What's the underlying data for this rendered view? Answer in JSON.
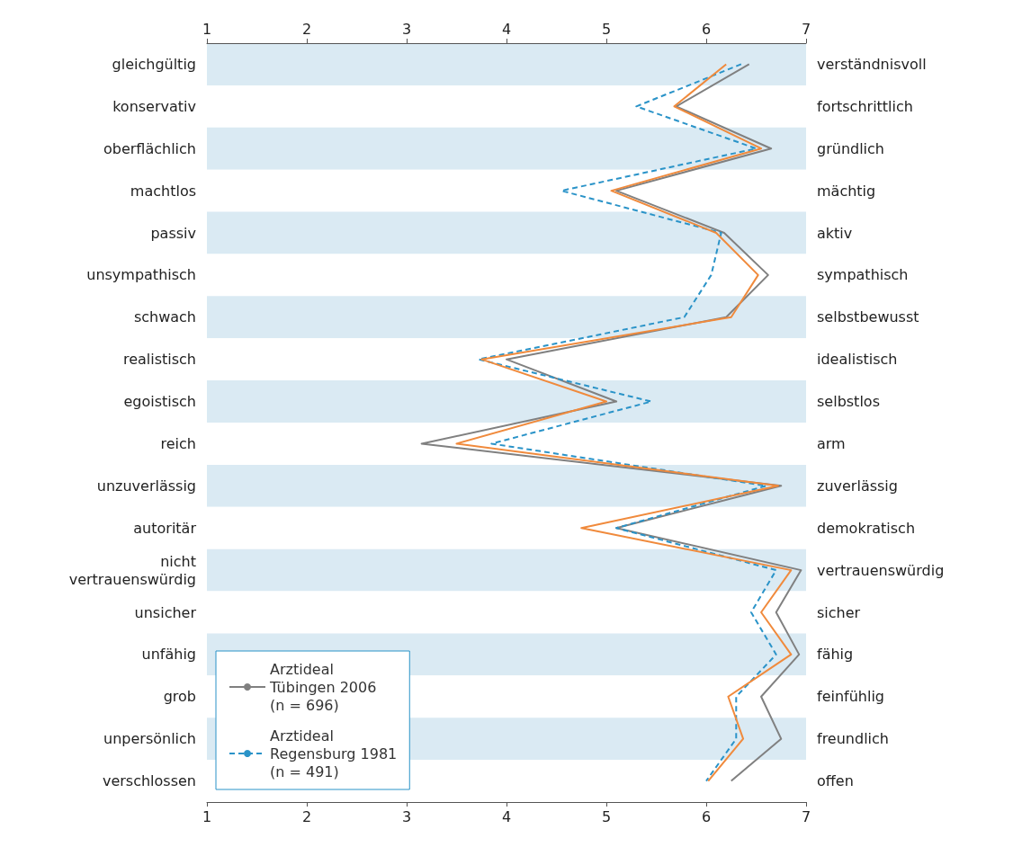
{
  "chart_data": {
    "type": "line",
    "orientation": "horizontal",
    "categories": [
      "gleichgültig",
      "konservativ",
      "oberflächlich",
      "machtlos",
      "passiv",
      "unsympathisch",
      "schwach",
      "realistisch",
      "egoistisch",
      "reich",
      "unzuverlässig",
      "autoritär",
      "nicht\nvertrauenswürdig",
      "unsicher",
      "unfähig",
      "grob",
      "unpersönlich",
      "verschlossen"
    ],
    "y2_categories": [
      "verständnisvoll",
      "fortschrittlich",
      "gründlich",
      "mächtig",
      "aktiv",
      "sympathisch",
      "selbstbewusst",
      "idealistisch",
      "selbstlos",
      "arm",
      "zuverlässig",
      "demokratisch",
      "vertrauenswürdig",
      "sicher",
      "fähig",
      "feinfühlig",
      "freundlich",
      "offen"
    ],
    "xlim": [
      1,
      7
    ],
    "xticks": [
      1,
      2,
      3,
      4,
      5,
      6,
      7
    ],
    "x2lim": [
      1,
      7
    ],
    "x2ticks": [
      1,
      2,
      3,
      4,
      5,
      6,
      7
    ],
    "series": [
      {
        "name": "Arztideal\nTübingen 2006\n(n = 696)",
        "color": "#808080",
        "line_style": "solid",
        "values": [
          6.43,
          5.7,
          6.65,
          5.1,
          6.18,
          6.62,
          6.2,
          4.0,
          5.1,
          3.15,
          6.75,
          5.1,
          6.95,
          6.7,
          6.93,
          6.55,
          6.75,
          6.25
        ]
      },
      {
        "name": "Arztideal\nRegensburg 1981\n(n = 491)",
        "color": "#2a93c8",
        "line_style": "dashed",
        "values": [
          6.35,
          5.3,
          6.5,
          4.55,
          6.15,
          6.05,
          5.78,
          3.72,
          5.45,
          3.85,
          6.6,
          5.1,
          6.7,
          6.45,
          6.7,
          6.3,
          6.3,
          6.0
        ]
      },
      {
        "color": "#f08a3c",
        "line_style": "solid",
        "values": [
          6.2,
          5.68,
          6.55,
          5.05,
          6.1,
          6.52,
          6.25,
          3.75,
          5.0,
          3.5,
          6.72,
          4.75,
          6.85,
          6.55,
          6.85,
          6.22,
          6.37,
          6.02
        ]
      }
    ],
    "marker": "none",
    "legend": "bottom left"
  }
}
